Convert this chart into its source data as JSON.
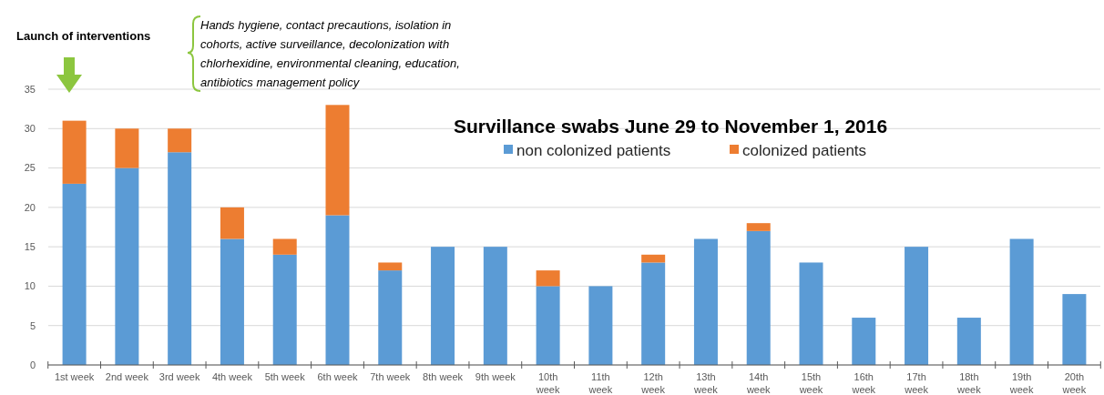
{
  "chart_data": {
    "type": "bar",
    "stacked": true,
    "title": "Survillance swabs June 29 to November 1, 2016",
    "categories": [
      "1st week",
      "2nd week",
      "3rd week",
      "4th week",
      "5th week",
      "6th week",
      "7th week",
      "8th week",
      "9th week",
      "10th week",
      "11th week",
      "12th week",
      "13th week",
      "14th week",
      "15th week",
      "16th week",
      "17th week",
      "18th week",
      "19th week",
      "20th week"
    ],
    "series": [
      {
        "name": "non colonized patients",
        "color": "#5b9bd5",
        "values": [
          23,
          25,
          27,
          16,
          14,
          19,
          12,
          15,
          15,
          10,
          10,
          13,
          16,
          17,
          13,
          6,
          15,
          6,
          16,
          9
        ]
      },
      {
        "name": "colonized patients",
        "color": "#ed7d31",
        "values": [
          8,
          5,
          3,
          4,
          2,
          14,
          1,
          0,
          0,
          2,
          0,
          1,
          0,
          1,
          0,
          0,
          0,
          0,
          0,
          0
        ]
      }
    ],
    "ylim": [
      0,
      35
    ],
    "yticks": [
      0,
      5,
      10,
      15,
      20,
      25,
      30,
      35
    ],
    "grid": "y",
    "legend": "top right",
    "annotations": [
      "Launch of interventions",
      "Hands hygiene, contact precautions, isolation in cohorts, active surveillance, decolonization with chlorhexidine, environmental cleaning, education, antibiotics management policy"
    ]
  }
}
